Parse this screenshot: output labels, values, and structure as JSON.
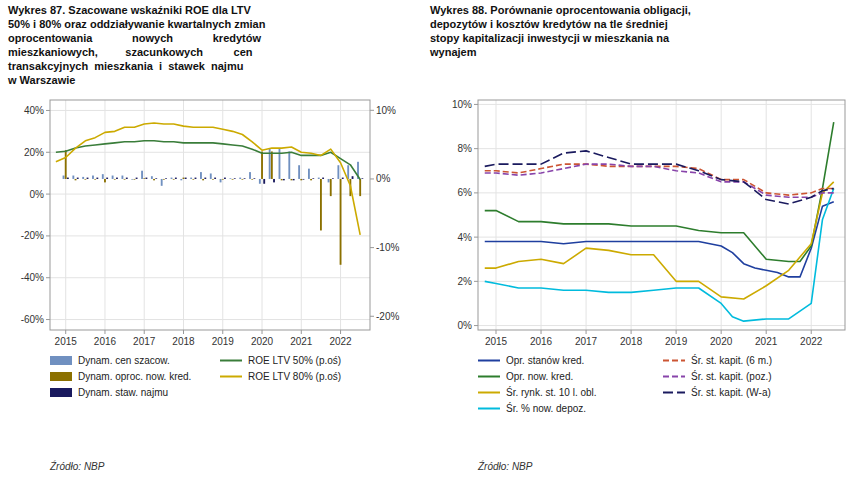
{
  "chart_data": [
    {
      "type": "bar",
      "title": "Wykres 87. Szacowane wskaźniki ROE dla LTV\n50% i 80% oraz oddziaływanie kwartalnych zmian\noprocentowania             nowych             kredytów\nmieszkaniowych,         szacunkowych          cen\ntransakcyjnych  mieszkania  i  stawek  najmu\nw Warszawie",
      "annotations": [
        "Źródło: NBP"
      ],
      "xlim": [
        2014.6,
        2022.75
      ],
      "xticks": [
        2015,
        2016,
        2017,
        2018,
        2019,
        2020,
        2021,
        2022
      ],
      "ylim": [
        -0.65,
        0.45
      ],
      "yticks": [
        {
          "value": -0.6,
          "label": "-60%"
        },
        {
          "value": -0.4,
          "label": "-40%"
        },
        {
          "value": -0.2,
          "label": "-20%"
        },
        {
          "value": 0.0,
          "label": "0%"
        },
        {
          "value": 0.2,
          "label": "20%"
        },
        {
          "value": 0.4,
          "label": "40%"
        }
      ],
      "y2lim": [
        -0.22,
        0.115
      ],
      "y2ticks": [
        {
          "value": -0.2,
          "label": "-20%"
        },
        {
          "value": -0.1,
          "label": "-10%"
        },
        {
          "value": 0.0,
          "label": "0%"
        },
        {
          "value": 0.1,
          "label": "10%"
        }
      ],
      "grid": true,
      "legend": "bottom",
      "series": [
        {
          "name": "Dynam. cen szacow.",
          "type": "bar",
          "axis": "y2",
          "color": "#7090c0",
          "x": [
            2015.0,
            2015.25,
            2015.5,
            2015.75,
            2016.0,
            2016.25,
            2016.5,
            2016.75,
            2017.0,
            2017.25,
            2017.5,
            2017.75,
            2018.0,
            2018.25,
            2018.5,
            2018.75,
            2019.0,
            2019.25,
            2019.5,
            2019.75,
            2020.0,
            2020.25,
            2020.5,
            2020.75,
            2021.0,
            2021.25,
            2021.5,
            2021.75,
            2022.0,
            2022.25,
            2022.5
          ],
          "values": [
            0.005,
            0.005,
            0.003,
            0.005,
            0.007,
            0.005,
            0.005,
            -0.001,
            0.012,
            0.004,
            -0.01,
            0.002,
            -0.002,
            0.002,
            0.01,
            0.008,
            -0.005,
            0.001,
            0.002,
            0.01,
            -0.007,
            0.045,
            0.045,
            0.04,
            0.02,
            0.015,
            0.002,
            -0.005,
            0.02,
            0.02,
            0.025
          ]
        },
        {
          "name": "Dynam. oproc. now. kred.",
          "type": "bar",
          "axis": "y2",
          "color": "#8b7000",
          "x": [
            2015.0,
            2015.25,
            2015.5,
            2015.75,
            2016.0,
            2016.25,
            2016.5,
            2016.75,
            2017.0,
            2017.25,
            2017.5,
            2017.75,
            2018.0,
            2018.25,
            2018.5,
            2018.75,
            2019.0,
            2019.25,
            2019.5,
            2019.75,
            2020.0,
            2020.25,
            2020.5,
            2020.75,
            2021.0,
            2021.25,
            2021.5,
            2021.75,
            2022.0,
            2022.25,
            2022.5
          ],
          "values": [
            0.042,
            -0.002,
            -0.001,
            -0.001,
            -0.005,
            -0.001,
            -0.001,
            -0.001,
            0.001,
            -0.002,
            -0.001,
            -0.001,
            0.002,
            -0.001,
            -0.002,
            -0.001,
            -0.001,
            -0.001,
            -0.001,
            -0.001,
            0.04,
            0.04,
            -0.002,
            -0.002,
            -0.002,
            -0.002,
            -0.075,
            -0.025,
            -0.125,
            -0.025,
            -0.025
          ]
        },
        {
          "name": "Dynam. staw. najmu",
          "type": "bar",
          "axis": "y2",
          "color": "#1a1a5e",
          "x": [
            2015.0,
            2015.25,
            2015.5,
            2015.75,
            2016.0,
            2016.25,
            2016.5,
            2016.75,
            2017.0,
            2017.25,
            2017.5,
            2017.75,
            2018.0,
            2018.25,
            2018.5,
            2018.75,
            2019.0,
            2019.25,
            2019.5,
            2019.75,
            2020.0,
            2020.25,
            2020.5,
            2020.75,
            2021.0,
            2021.25,
            2021.5,
            2021.75,
            2022.0,
            2022.25,
            2022.5
          ],
          "values": [
            0.002,
            0.002,
            0.002,
            0.002,
            0.002,
            0.002,
            0.002,
            0.002,
            0.002,
            0.001,
            0.001,
            0.002,
            0.002,
            0.002,
            0.002,
            0.002,
            0.002,
            0.001,
            0.001,
            0.001,
            -0.007,
            -0.005,
            -0.002,
            -0.002,
            -0.001,
            0.001,
            0.002,
            0.001,
            0.002,
            0.004,
            0.001
          ]
        },
        {
          "name": "ROE LTV 50% (p.oś)",
          "type": "line",
          "color": "#3a7d3a",
          "x": [
            2014.75,
            2015.0,
            2015.25,
            2015.5,
            2015.75,
            2016.0,
            2016.25,
            2016.5,
            2016.75,
            2017.0,
            2017.25,
            2017.5,
            2017.75,
            2018.0,
            2018.25,
            2018.5,
            2018.75,
            2019.0,
            2019.25,
            2019.5,
            2019.75,
            2020.0,
            2020.25,
            2020.5,
            2020.75,
            2021.0,
            2021.25,
            2021.5,
            2021.75,
            2022.0,
            2022.25,
            2022.5
          ],
          "values": [
            0.2,
            0.205,
            0.22,
            0.23,
            0.235,
            0.24,
            0.245,
            0.25,
            0.25,
            0.255,
            0.255,
            0.25,
            0.25,
            0.245,
            0.245,
            0.245,
            0.245,
            0.24,
            0.235,
            0.23,
            0.215,
            0.195,
            0.195,
            0.195,
            0.2,
            0.185,
            0.185,
            0.185,
            0.2,
            0.17,
            0.14,
            0.07
          ]
        },
        {
          "name": "ROE LTV 80% (p.oś)",
          "type": "line",
          "color": "#ccaa00",
          "x": [
            2014.75,
            2015.0,
            2015.25,
            2015.5,
            2015.75,
            2016.0,
            2016.25,
            2016.5,
            2016.75,
            2017.0,
            2017.25,
            2017.5,
            2017.75,
            2018.0,
            2018.25,
            2018.5,
            2018.75,
            2019.0,
            2019.25,
            2019.5,
            2019.75,
            2020.0,
            2020.25,
            2020.5,
            2020.75,
            2021.0,
            2021.25,
            2021.5,
            2021.75,
            2022.0,
            2022.25,
            2022.5
          ],
          "values": [
            0.155,
            0.175,
            0.22,
            0.255,
            0.27,
            0.295,
            0.3,
            0.32,
            0.32,
            0.335,
            0.34,
            0.335,
            0.335,
            0.325,
            0.32,
            0.32,
            0.32,
            0.31,
            0.3,
            0.285,
            0.25,
            0.21,
            0.22,
            0.22,
            0.225,
            0.2,
            0.195,
            0.185,
            0.215,
            0.15,
            0.04,
            -0.195
          ]
        }
      ]
    },
    {
      "type": "line",
      "title": "Wykres 88. Porównanie oprocentowania obligacji,\ndepozytów i kosztów kredytów na tle średniej\nstopy kapitalizacji inwestycji w mieszkania na\nwynajem",
      "annotations": [
        "Źródło: NBP"
      ],
      "xlim": [
        2014.6,
        2022.75
      ],
      "xticks": [
        2015,
        2016,
        2017,
        2018,
        2019,
        2020,
        2021,
        2022
      ],
      "ylim": [
        -0.002,
        0.102
      ],
      "yticks": [
        {
          "value": 0.0,
          "label": "0%"
        },
        {
          "value": 0.02,
          "label": "2%"
        },
        {
          "value": 0.04,
          "label": "4%"
        },
        {
          "value": 0.06,
          "label": "6%"
        },
        {
          "value": 0.08,
          "label": "8%"
        },
        {
          "value": 0.1,
          "label": "10%"
        }
      ],
      "grid": true,
      "legend": "bottom",
      "series": [
        {
          "name": "Opr. stanów kred.",
          "color": "#1f3f9f",
          "line_style": "solid",
          "x": [
            2014.75,
            2015.0,
            2015.5,
            2016.0,
            2016.5,
            2017.0,
            2017.5,
            2018.0,
            2018.5,
            2019.0,
            2019.5,
            2020.0,
            2020.25,
            2020.5,
            2020.75,
            2021.0,
            2021.25,
            2021.5,
            2021.75,
            2022.0,
            2022.25,
            2022.5
          ],
          "values": [
            0.038,
            0.038,
            0.038,
            0.038,
            0.037,
            0.038,
            0.038,
            0.038,
            0.038,
            0.038,
            0.038,
            0.036,
            0.033,
            0.028,
            0.026,
            0.025,
            0.024,
            0.022,
            0.022,
            0.035,
            0.054,
            0.056
          ]
        },
        {
          "name": "Opr. now. kred.",
          "color": "#2d7d2d",
          "line_style": "solid",
          "x": [
            2014.75,
            2015.0,
            2015.5,
            2016.0,
            2016.5,
            2017.0,
            2017.5,
            2018.0,
            2018.5,
            2019.0,
            2019.5,
            2020.0,
            2020.5,
            2021.0,
            2021.5,
            2021.75,
            2022.0,
            2022.25,
            2022.5
          ],
          "values": [
            0.052,
            0.052,
            0.047,
            0.047,
            0.046,
            0.046,
            0.046,
            0.045,
            0.045,
            0.045,
            0.043,
            0.042,
            0.042,
            0.03,
            0.029,
            0.029,
            0.036,
            0.062,
            0.092
          ]
        },
        {
          "name": "Śr. rynk. st. 10 l. obl.",
          "color": "#ccaa00",
          "line_style": "solid",
          "x": [
            2014.75,
            2015.0,
            2015.5,
            2016.0,
            2016.5,
            2017.0,
            2017.5,
            2018.0,
            2018.5,
            2019.0,
            2019.5,
            2020.0,
            2020.5,
            2021.0,
            2021.5,
            2022.0,
            2022.25,
            2022.5
          ],
          "values": [
            0.026,
            0.026,
            0.029,
            0.03,
            0.028,
            0.035,
            0.034,
            0.032,
            0.032,
            0.02,
            0.02,
            0.013,
            0.012,
            0.018,
            0.025,
            0.037,
            0.06,
            0.065
          ]
        },
        {
          "name": "Śr. % now. depoz.",
          "color": "#00bbdd",
          "line_style": "solid",
          "x": [
            2014.75,
            2015.0,
            2015.5,
            2016.0,
            2016.5,
            2017.0,
            2017.5,
            2018.0,
            2018.5,
            2019.0,
            2019.5,
            2020.0,
            2020.25,
            2020.5,
            2021.0,
            2021.5,
            2022.0,
            2022.25,
            2022.5
          ],
          "values": [
            0.02,
            0.019,
            0.017,
            0.017,
            0.016,
            0.016,
            0.015,
            0.015,
            0.016,
            0.017,
            0.017,
            0.01,
            0.004,
            0.002,
            0.003,
            0.003,
            0.01,
            0.048,
            0.062
          ]
        },
        {
          "name": "Śr. st. kapit. (6 m.)",
          "color": "#cc5533",
          "line_style": "dashed",
          "x": [
            2014.75,
            2015.0,
            2015.5,
            2016.0,
            2016.5,
            2017.0,
            2017.5,
            2018.0,
            2018.5,
            2019.0,
            2019.5,
            2020.0,
            2020.5,
            2021.0,
            2021.5,
            2022.0,
            2022.25,
            2022.5
          ],
          "values": [
            0.07,
            0.07,
            0.069,
            0.071,
            0.073,
            0.073,
            0.072,
            0.072,
            0.072,
            0.072,
            0.071,
            0.066,
            0.066,
            0.06,
            0.059,
            0.06,
            0.062,
            0.062
          ]
        },
        {
          "name": "Śr. st. kapit. (poz.)",
          "color": "#8844aa",
          "line_style": "dashed",
          "x": [
            2014.75,
            2015.0,
            2015.5,
            2016.0,
            2016.5,
            2017.0,
            2017.5,
            2018.0,
            2018.5,
            2019.0,
            2019.5,
            2020.0,
            2020.5,
            2021.0,
            2021.5,
            2022.0,
            2022.25,
            2022.5
          ],
          "values": [
            0.069,
            0.069,
            0.068,
            0.069,
            0.071,
            0.073,
            0.073,
            0.072,
            0.072,
            0.07,
            0.069,
            0.065,
            0.065,
            0.059,
            0.058,
            0.058,
            0.06,
            0.06
          ]
        },
        {
          "name": "Śr. st. kapit. (W-a)",
          "color": "#1a1a5e",
          "line_style": "longdash",
          "x": [
            2014.75,
            2015.0,
            2015.5,
            2016.0,
            2016.5,
            2017.0,
            2017.5,
            2018.0,
            2018.5,
            2019.0,
            2019.5,
            2020.0,
            2020.5,
            2021.0,
            2021.5,
            2022.0,
            2022.25,
            2022.5
          ],
          "values": [
            0.072,
            0.073,
            0.073,
            0.073,
            0.078,
            0.079,
            0.076,
            0.073,
            0.073,
            0.073,
            0.07,
            0.066,
            0.065,
            0.057,
            0.055,
            0.058,
            0.061,
            0.062
          ]
        }
      ]
    }
  ]
}
